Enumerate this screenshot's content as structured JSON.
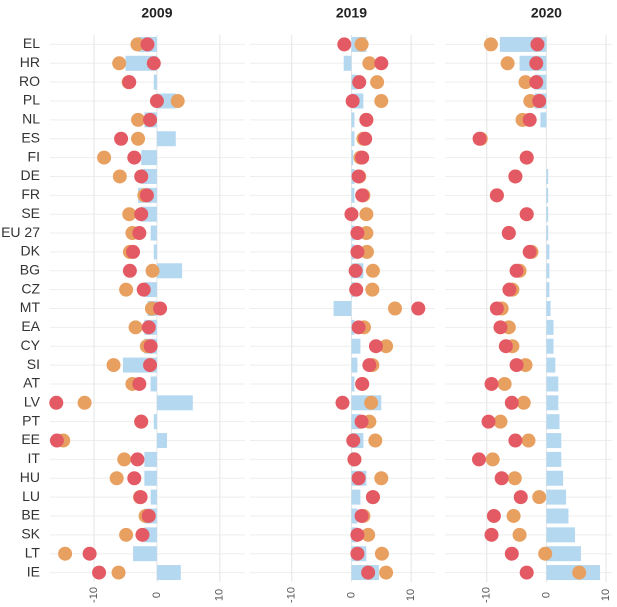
{
  "chart_data": [
    {
      "type": "bar",
      "title": "2009",
      "categories": [
        "EL",
        "HR",
        "RO",
        "PL",
        "NL",
        "ES",
        "FI",
        "DE",
        "FR",
        "SE",
        "EU 27",
        "DK",
        "BG",
        "CZ",
        "MT",
        "EA",
        "CY",
        "SI",
        "AT",
        "LV",
        "PT",
        "EE",
        "IT",
        "HU",
        "LU",
        "BE",
        "SK",
        "LT",
        "IE"
      ],
      "xlim": [
        -17,
        14
      ],
      "xticks": [
        -10,
        0,
        10
      ],
      "grid": true,
      "series": [
        {
          "mark": "bar",
          "color": "#b5d8f1",
          "values": [
            -3,
            -5,
            -0.5,
            3,
            -2,
            3,
            -2.5,
            -2.5,
            -3,
            -2.5,
            -1,
            -0.5,
            4,
            -2,
            -1.5,
            -2,
            -2,
            -5.4,
            -1,
            5.7,
            -0.5,
            1.6,
            -2,
            -2,
            -1,
            -2,
            -2,
            -3.8,
            3.8
          ]
        },
        {
          "mark": "dot",
          "color": "#e8a060",
          "values": [
            -3.1,
            -6,
            -4.5,
            3.3,
            -3,
            -3,
            -8.4,
            -5.9,
            -2,
            -4.4,
            -3.9,
            -4.3,
            -0.7,
            -4.9,
            -0.8,
            -3.4,
            -1.6,
            -6.9,
            -3.9,
            -11.5,
            -2.5,
            -14.9,
            -5.2,
            -6.4,
            -2.7,
            -1.8,
            -4.9,
            -14.6,
            -6.1
          ]
        },
        {
          "mark": "dot",
          "color": "#e35a64",
          "values": [
            -1.5,
            -0.5,
            -4.4,
            0,
            -1.1,
            -5.7,
            -3.6,
            -2.5,
            -1.6,
            -2.5,
            -2.8,
            -3.8,
            -4.3,
            -2.1,
            0.5,
            -1.3,
            -1,
            -1.1,
            -2.8,
            -16,
            -2.5,
            -15.9,
            -3.1,
            -3.6,
            -2.6,
            -1.3,
            -2.3,
            -10.7,
            -9.2
          ]
        }
      ]
    },
    {
      "type": "bar",
      "title": "2019",
      "xlim": [
        -17,
        14
      ],
      "xticks": [
        -10,
        0,
        10
      ],
      "grid": true,
      "series": [
        {
          "mark": "bar",
          "color": "#b5d8f1",
          "values": [
            2.5,
            -1.3,
            1,
            2,
            0.5,
            0.5,
            0.3,
            0.5,
            0.5,
            0.5,
            0.5,
            0.5,
            2,
            0.5,
            -3,
            0.5,
            1.5,
            1,
            0.5,
            5,
            1.5,
            2,
            0.3,
            2.5,
            1.5,
            1,
            1,
            2.5,
            4.6
          ]
        },
        {
          "mark": "dot",
          "color": "#e8a060",
          "values": [
            1.7,
            3,
            4.3,
            5,
            2.5,
            2,
            1.5,
            1.3,
            2,
            2.5,
            2.5,
            2.6,
            3.6,
            3.5,
            7.3,
            2.1,
            5.8,
            3.5,
            1.8,
            3.3,
            3,
            4,
            0.5,
            5,
            3.6,
            2,
            2.8,
            5.1,
            5.8
          ]
        },
        {
          "mark": "dot",
          "color": "#e35a64",
          "values": [
            -1.2,
            5,
            1.3,
            0.2,
            2.5,
            2.3,
            1.8,
            1.2,
            1.8,
            0,
            1,
            1,
            0.7,
            0.8,
            11.2,
            1.2,
            4.1,
            3,
            1.8,
            -1.5,
            1.7,
            0.3,
            0.5,
            1.2,
            3.6,
            1.7,
            1,
            1,
            2.8
          ]
        }
      ]
    },
    {
      "type": "bar",
      "title": "2020",
      "xlim": [
        -17,
        11
      ],
      "xticks": [
        -10,
        0,
        10
      ],
      "grid": true,
      "series": [
        {
          "mark": "bar",
          "color": "#b5d8f1",
          "values": [
            -7.8,
            -4.5,
            -2,
            -2,
            -1,
            0,
            0,
            0.3,
            0.3,
            0.3,
            0.3,
            0.5,
            0.5,
            0.5,
            0.7,
            1.2,
            1.2,
            1.5,
            2,
            2,
            2.2,
            2.5,
            2.5,
            2.8,
            3.3,
            3.7,
            4.8,
            5.8,
            9
          ]
        },
        {
          "mark": "dot",
          "color": "#e8a060",
          "values": [
            -9.3,
            -6.5,
            -3.5,
            -2.7,
            -4,
            -11,
            -3.3,
            -5.2,
            -8.3,
            -3.3,
            -6.3,
            -2.5,
            -4.5,
            -5.7,
            -7.5,
            -6.3,
            -5.7,
            -3.5,
            -7,
            -3.8,
            -7.7,
            -3,
            -9,
            -5.3,
            -1.2,
            -5.5,
            -4.5,
            -0.2,
            5.5
          ]
        },
        {
          "mark": "dot",
          "color": "#e35a64",
          "values": [
            -1.5,
            -1.7,
            -1.7,
            -1.2,
            -2.8,
            -11.2,
            -3.3,
            -5.2,
            -8.3,
            -3.3,
            -6.3,
            -2.8,
            -5,
            -6.2,
            -8.3,
            -7.7,
            -6.8,
            -5,
            -9.2,
            -5.8,
            -9.7,
            -5.2,
            -11.3,
            -7.5,
            -4.3,
            -8.8,
            -9.2,
            -5.8,
            -3.3
          ]
        }
      ]
    }
  ]
}
